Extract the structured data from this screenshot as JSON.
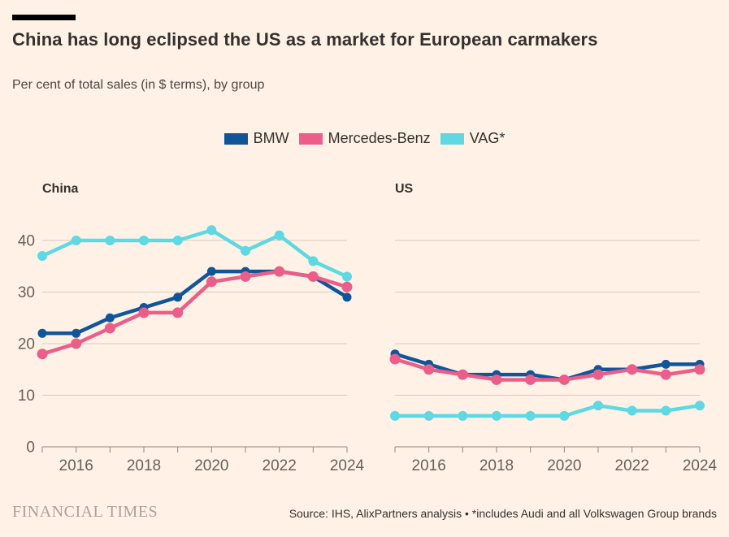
{
  "page": {
    "background": "#FFF1E5",
    "accent_bar_color": "#000000"
  },
  "header": {
    "title": "China has long eclipsed the US as a market for European carmakers",
    "subtitle": "Per cent of total sales (in $ terms), by group"
  },
  "legend": {
    "items": [
      {
        "label": "BMW",
        "color": "#10559A"
      },
      {
        "label": "Mercedes-Benz",
        "color": "#EB5E8A"
      },
      {
        "label": "VAG*",
        "color": "#5ED8E3"
      }
    ]
  },
  "chart_data": {
    "type": "line",
    "x": [
      2015,
      2016,
      2017,
      2018,
      2019,
      2020,
      2021,
      2022,
      2023,
      2024
    ],
    "x_tick_labels": [
      "2016",
      "2018",
      "2020",
      "2022",
      "2024"
    ],
    "ylim": [
      0,
      45
    ],
    "yticks": [
      0,
      10,
      20,
      30,
      40
    ],
    "grid": "horizontal gridlines at yticks, no vertical grid",
    "legend_position": "top center",
    "panels": [
      {
        "title": "China",
        "series": [
          {
            "name": "BMW",
            "color": "#10559A",
            "values": [
              22,
              22,
              25,
              27,
              29,
              34,
              34,
              34,
              33,
              29
            ]
          },
          {
            "name": "Mercedes-Benz",
            "color": "#EB5E8A",
            "values": [
              18,
              20,
              23,
              26,
              26,
              32,
              33,
              34,
              33,
              31
            ]
          },
          {
            "name": "VAG*",
            "color": "#5ED8E3",
            "values": [
              37,
              40,
              40,
              40,
              40,
              42,
              38,
              41,
              36,
              33
            ]
          }
        ]
      },
      {
        "title": "US",
        "series": [
          {
            "name": "BMW",
            "color": "#10559A",
            "values": [
              18,
              16,
              14,
              14,
              14,
              13,
              15,
              15,
              16,
              16
            ]
          },
          {
            "name": "Mercedes-Benz",
            "color": "#EB5E8A",
            "values": [
              17,
              15,
              14,
              13,
              13,
              13,
              14,
              15,
              14,
              15
            ]
          },
          {
            "name": "VAG*",
            "color": "#5ED8E3",
            "values": [
              6,
              6,
              6,
              6,
              6,
              6,
              8,
              7,
              7,
              8
            ]
          }
        ]
      }
    ]
  },
  "footer": {
    "brand": "FINANCIAL TIMES",
    "source": "Source: IHS, AlixPartners analysis • *includes Audi and all Volkswagen Group brands"
  },
  "colors": {
    "title_text": "#33302E",
    "subtitle_text": "#4C4743",
    "panel_title_text": "#33302E",
    "legend_text": "#33302E",
    "axis_text": "#66605C",
    "gridline": "#D5CABF",
    "axis_line": "#8F867E",
    "brand_text": "#ABA199",
    "source_text": "#33302E"
  }
}
